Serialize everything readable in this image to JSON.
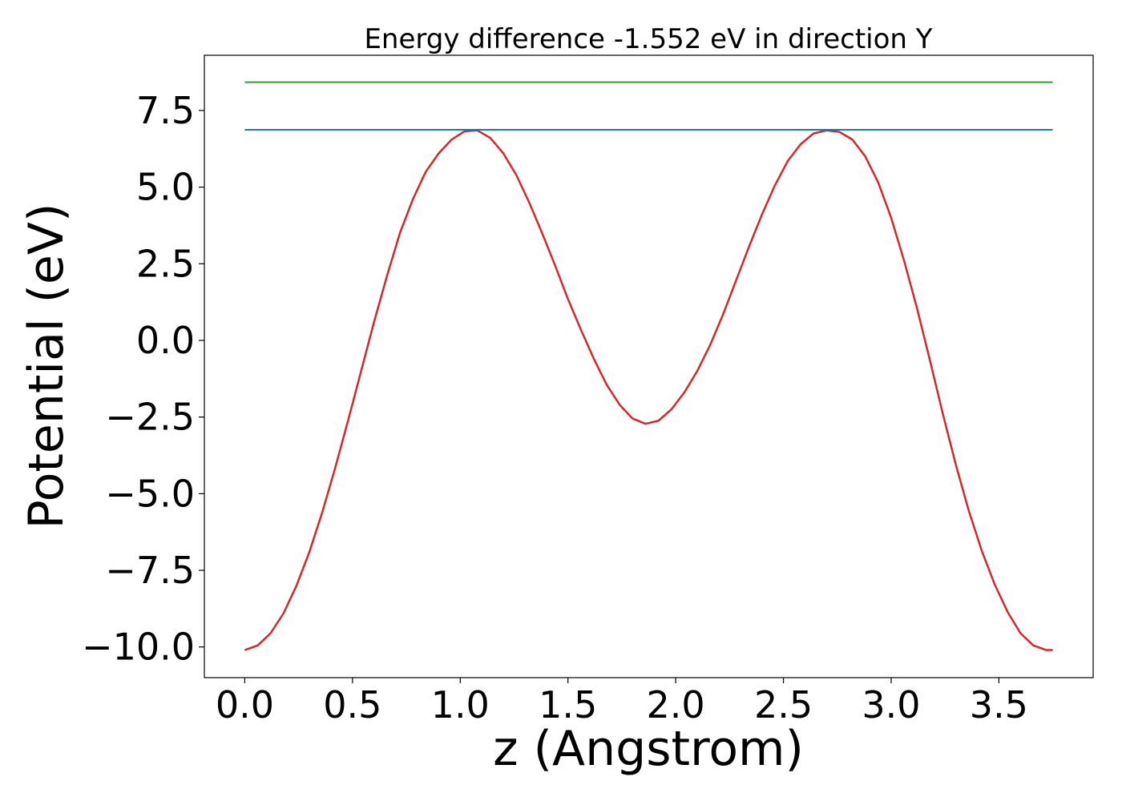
{
  "chart_data": {
    "type": "line",
    "title": "Energy difference -1.552 eV in direction Y",
    "xlabel": "z (Angstrom)",
    "ylabel": "Potential (eV)",
    "xlim": [
      -0.1875,
      3.9375
    ],
    "ylim": [
      -11.0,
      9.3
    ],
    "xticks": [
      0.0,
      0.5,
      1.0,
      1.5,
      2.0,
      2.5,
      3.0,
      3.5
    ],
    "xtick_labels": [
      "0.0",
      "0.5",
      "1.0",
      "1.5",
      "2.0",
      "2.5",
      "3.0",
      "3.5"
    ],
    "yticks": [
      7.5,
      5.0,
      2.5,
      0.0,
      -2.5,
      -5.0,
      -7.5,
      -10.0
    ],
    "ytick_labels": [
      "7.5",
      "5.0",
      "2.5",
      "0.0",
      "−2.5",
      "−5.0",
      "−7.5",
      "−10.0"
    ],
    "grid": false,
    "series": [
      {
        "color": "#d62728",
        "x": [
          0.0,
          0.06,
          0.12,
          0.18,
          0.24,
          0.3,
          0.36,
          0.42,
          0.48,
          0.54,
          0.6,
          0.66,
          0.72,
          0.78,
          0.84,
          0.9,
          0.96,
          1.02,
          1.08,
          1.14,
          1.2,
          1.26,
          1.32,
          1.38,
          1.44,
          1.5,
          1.56,
          1.62,
          1.68,
          1.74,
          1.8,
          1.86,
          1.92,
          1.98,
          2.04,
          2.1,
          2.16,
          2.22,
          2.28,
          2.34,
          2.4,
          2.46,
          2.52,
          2.58,
          2.64,
          2.7,
          2.76,
          2.82,
          2.88,
          2.94,
          3.0,
          3.06,
          3.12,
          3.18,
          3.24,
          3.3,
          3.36,
          3.42,
          3.48,
          3.54,
          3.6,
          3.66,
          3.72,
          3.75
        ],
        "y": [
          -10.1,
          -9.95,
          -9.55,
          -8.9,
          -8.0,
          -6.9,
          -5.6,
          -4.15,
          -2.6,
          -1.0,
          0.6,
          2.1,
          3.5,
          4.6,
          5.5,
          6.1,
          6.55,
          6.82,
          6.85,
          6.6,
          6.1,
          5.4,
          4.5,
          3.5,
          2.45,
          1.35,
          0.35,
          -0.6,
          -1.45,
          -2.1,
          -2.55,
          -2.72,
          -2.62,
          -2.25,
          -1.7,
          -1.0,
          -0.15,
          0.85,
          1.95,
          3.05,
          4.1,
          5.05,
          5.85,
          6.4,
          6.75,
          6.85,
          6.8,
          6.55,
          6.0,
          5.15,
          4.0,
          2.6,
          1.05,
          -0.65,
          -2.4,
          -4.05,
          -5.55,
          -6.85,
          -7.95,
          -8.85,
          -9.55,
          -9.95,
          -10.1,
          -10.1
        ],
        "linewidth": 2.5
      },
      {
        "color": "#1f77b4",
        "x": [
          0.0,
          3.75
        ],
        "y": [
          6.87,
          6.87
        ],
        "linewidth": 2
      },
      {
        "color": "#2ca02c",
        "x": [
          0.0,
          3.75
        ],
        "y": [
          8.42,
          8.42
        ],
        "linewidth": 2
      }
    ]
  }
}
